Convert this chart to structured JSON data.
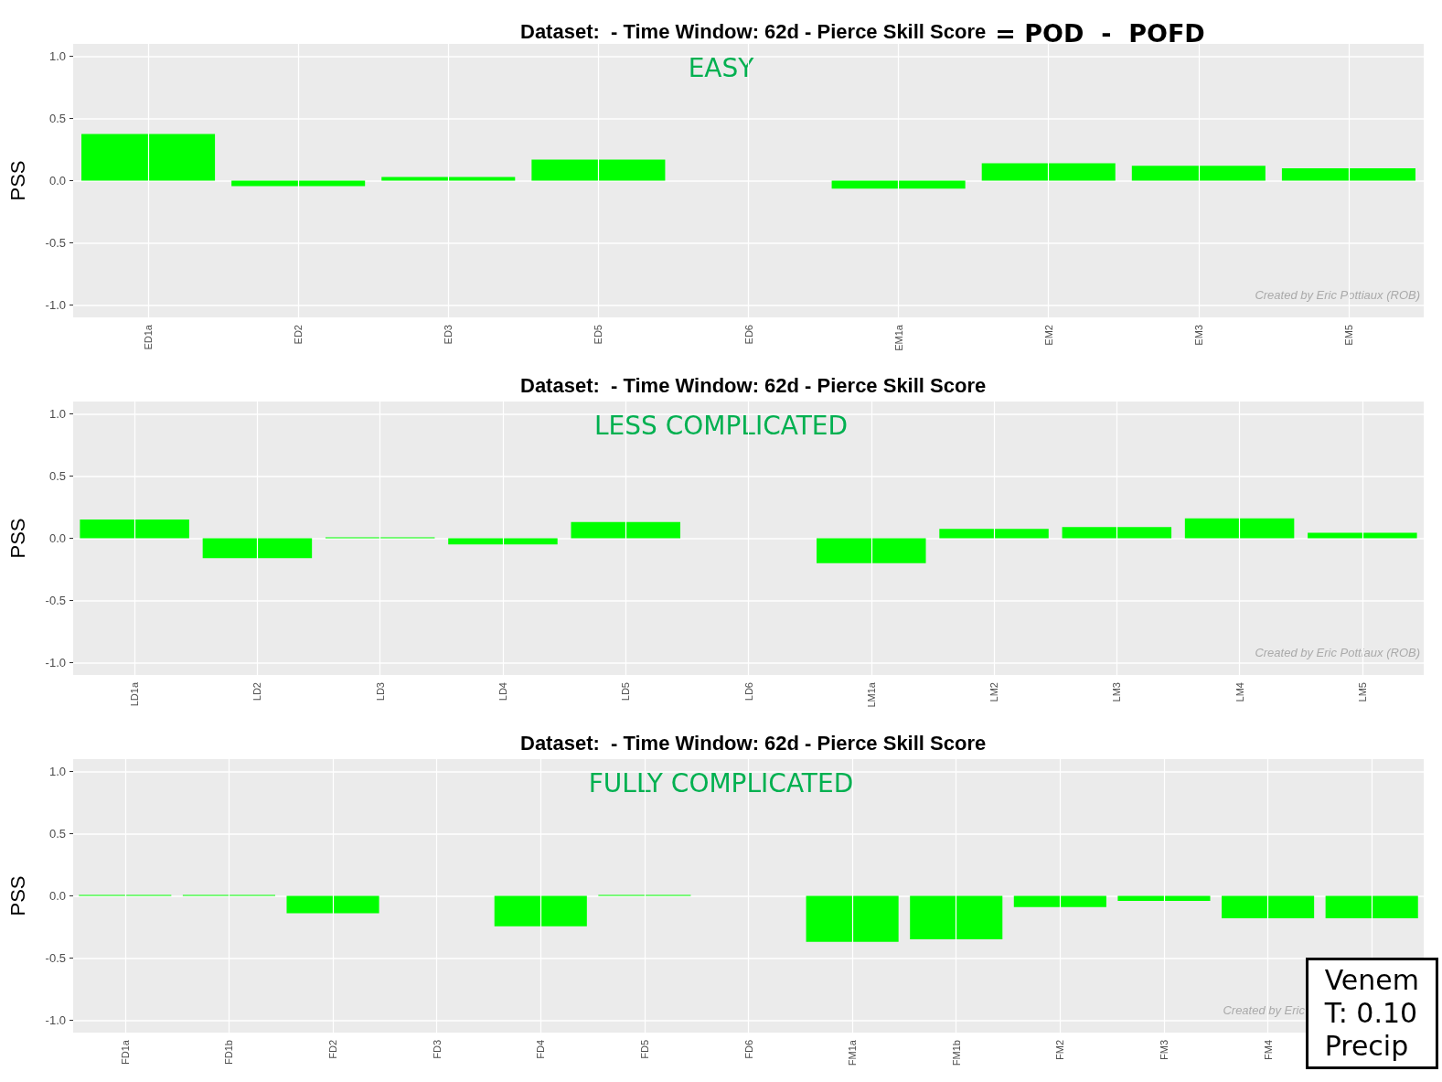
{
  "chart_data": [
    {
      "type": "bar",
      "title": "Dataset:  - Time Window: 62d - Pierce Skill Score",
      "ylabel": "PSS",
      "annotations": [
        "EASY",
        "Created by Eric Pottiaux (ROB)",
        "= POD  -  POFD"
      ],
      "categories": [
        "ED1a",
        "ED2",
        "ED3",
        "ED5",
        "ED6",
        "EM1a",
        "EM2",
        "EM3",
        "EM5"
      ],
      "values": [
        0.375,
        -0.045,
        0.03,
        0.17,
        null,
        -0.065,
        0.14,
        0.12,
        0.1
      ],
      "color": "#00ff00",
      "ylim": [
        -1.1,
        1.1
      ],
      "yticks": [
        {
          "value": -1,
          "label": "-1.0"
        },
        {
          "value": -0.5,
          "label": "-0.5"
        },
        {
          "value": 0,
          "label": "0.0"
        },
        {
          "value": 0.5,
          "label": "0.5"
        },
        {
          "value": 1,
          "label": "1.0"
        }
      ],
      "grid": true
    },
    {
      "type": "bar",
      "title": "Dataset:  - Time Window: 62d - Pierce Skill Score",
      "ylabel": "PSS",
      "annotations": [
        "LESS COMPLICATED",
        "Created by Eric Pottiaux (ROB)"
      ],
      "categories": [
        "LD1a",
        "LD2",
        "LD3",
        "LD4",
        "LD5",
        "LD6",
        "LM1a",
        "LM2",
        "LM3",
        "LM4",
        "LM5"
      ],
      "values": [
        0.15,
        -0.16,
        0,
        -0.05,
        0.13,
        null,
        -0.2,
        0.075,
        0.09,
        0.16,
        0.045
      ],
      "color": "#00ff00",
      "ylim": [
        -1.1,
        1.1
      ],
      "yticks": [
        {
          "value": -1,
          "label": "-1.0"
        },
        {
          "value": -0.5,
          "label": "-0.5"
        },
        {
          "value": 0,
          "label": "0.0"
        },
        {
          "value": 0.5,
          "label": "0.5"
        },
        {
          "value": 1,
          "label": "1.0"
        }
      ],
      "grid": true
    },
    {
      "type": "bar",
      "title": "Dataset:  - Time Window: 62d - Pierce Skill Score",
      "ylabel": "PSS",
      "annotations": [
        "FULLY COMPLICATED",
        "Created by Eric",
        "Venem",
        "T: 0.10",
        "Precip"
      ],
      "categories": [
        "FD1a",
        "FD1b",
        "FD2",
        "FD3",
        "FD4",
        "FD5",
        "FD6",
        "FM1a",
        "FM1b",
        "FM2",
        "FM3",
        "FM4",
        null
      ],
      "values": [
        0,
        0,
        -0.14,
        null,
        -0.245,
        0,
        null,
        -0.37,
        -0.35,
        -0.09,
        -0.04,
        -0.18,
        -0.18
      ],
      "color": "#00ff00",
      "ylim": [
        -1.1,
        1.1
      ],
      "yticks": [
        {
          "value": -1,
          "label": "-1.0"
        },
        {
          "value": -0.5,
          "label": "-0.5"
        },
        {
          "value": 0,
          "label": "0.0"
        },
        {
          "value": 0.5,
          "label": "0.5"
        },
        {
          "value": 1,
          "label": "1.0"
        }
      ],
      "grid": true
    }
  ]
}
